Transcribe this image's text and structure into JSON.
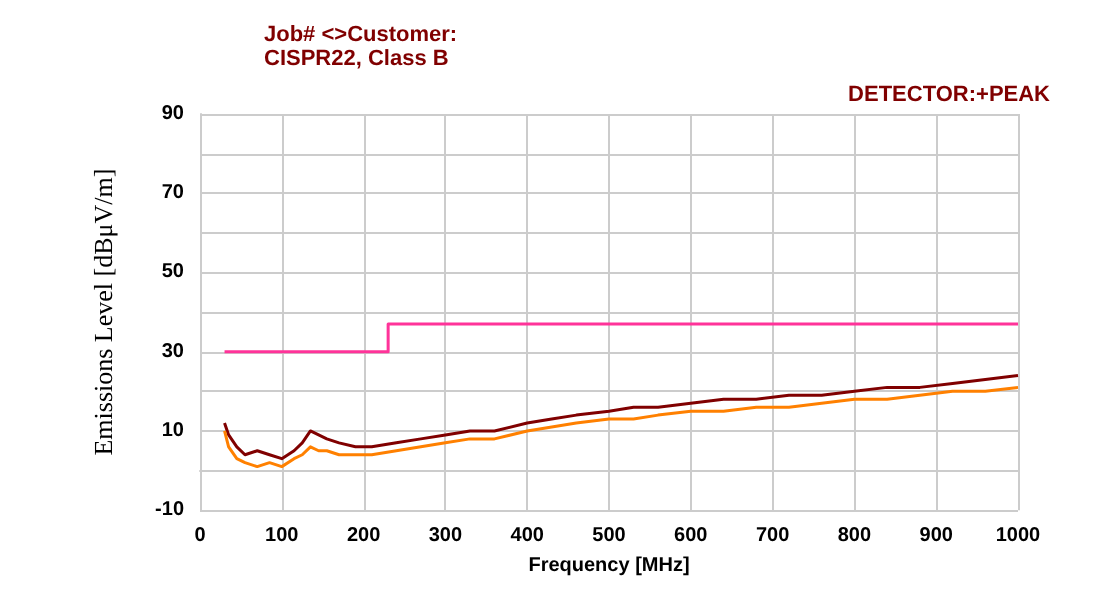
{
  "chart_data": {
    "type": "line",
    "xlabel": "Frequency [MHz]",
    "ylabel": "Emissions Level [dBμV/m]",
    "annotations": [
      "Job# <>Customer:",
      "CISPR22, Class B",
      "DETECTOR:+PEAK"
    ],
    "xlim": [
      0,
      1000
    ],
    "xticks": [
      0,
      100,
      200,
      300,
      400,
      500,
      600,
      700,
      800,
      900,
      1000
    ],
    "ylim": [
      -10,
      90
    ],
    "yticks": [
      -10,
      {
        "value": 0,
        "label": null
      },
      10,
      {
        "value": 20,
        "label": null
      },
      30,
      {
        "value": 40,
        "label": null
      },
      50,
      {
        "value": 60,
        "label": null
      },
      70,
      {
        "value": 80,
        "label": null
      },
      90
    ],
    "grid": true,
    "marker": "none",
    "series": [
      {
        "color": "#ff3399",
        "x": [
          30,
          230,
          230,
          1000
        ],
        "values": [
          30,
          30,
          37,
          37
        ]
      },
      {
        "color": "#800000",
        "x": [
          30,
          35,
          45,
          55,
          70,
          85,
          100,
          115,
          125,
          135,
          145,
          155,
          170,
          190,
          210,
          240,
          270,
          300,
          330,
          360,
          400,
          430,
          460,
          500,
          530,
          560,
          600,
          640,
          680,
          720,
          760,
          800,
          840,
          880,
          920,
          960,
          1000
        ],
        "values": [
          12,
          9,
          6,
          4,
          5,
          4,
          3,
          5,
          7,
          10,
          9,
          8,
          7,
          6,
          6,
          7,
          8,
          9,
          10,
          10,
          12,
          13,
          14,
          15,
          16,
          16,
          17,
          18,
          18,
          19,
          19,
          20,
          21,
          21,
          22,
          23,
          24
        ]
      },
      {
        "color": "#ff8000",
        "x": [
          30,
          35,
          45,
          55,
          70,
          85,
          100,
          115,
          125,
          135,
          145,
          155,
          170,
          190,
          210,
          240,
          270,
          300,
          330,
          360,
          400,
          430,
          460,
          500,
          530,
          560,
          600,
          640,
          680,
          720,
          760,
          800,
          840,
          880,
          920,
          960,
          1000
        ],
        "values": [
          10,
          6,
          3,
          2,
          1,
          2,
          1,
          3,
          4,
          6,
          5,
          5,
          4,
          4,
          4,
          5,
          6,
          7,
          8,
          8,
          10,
          11,
          12,
          13,
          13,
          14,
          15,
          15,
          16,
          16,
          17,
          18,
          18,
          19,
          20,
          20,
          21
        ]
      }
    ]
  }
}
